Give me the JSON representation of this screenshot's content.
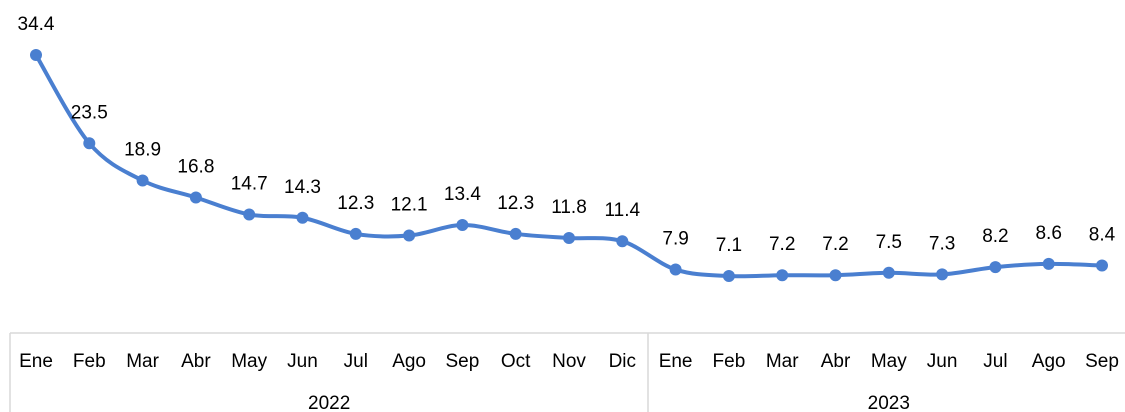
{
  "chart_data": {
    "type": "line",
    "groups": [
      {
        "label": "2022",
        "categories": [
          "Ene",
          "Feb",
          "Mar",
          "Abr",
          "May",
          "Jun",
          "Jul",
          "Ago",
          "Sep",
          "Oct",
          "Nov",
          "Dic"
        ]
      },
      {
        "label": "2023",
        "categories": [
          "Ene",
          "Feb",
          "Mar",
          "Abr",
          "May",
          "Jun",
          "Jul",
          "Ago",
          "Sep"
        ]
      }
    ],
    "values": [
      34.4,
      23.5,
      18.9,
      16.8,
      14.7,
      14.3,
      12.3,
      12.1,
      13.4,
      12.3,
      11.8,
      11.4,
      7.9,
      7.1,
      7.2,
      7.2,
      7.5,
      7.3,
      8.2,
      8.6,
      8.4
    ],
    "color": "#4a7fd0"
  }
}
